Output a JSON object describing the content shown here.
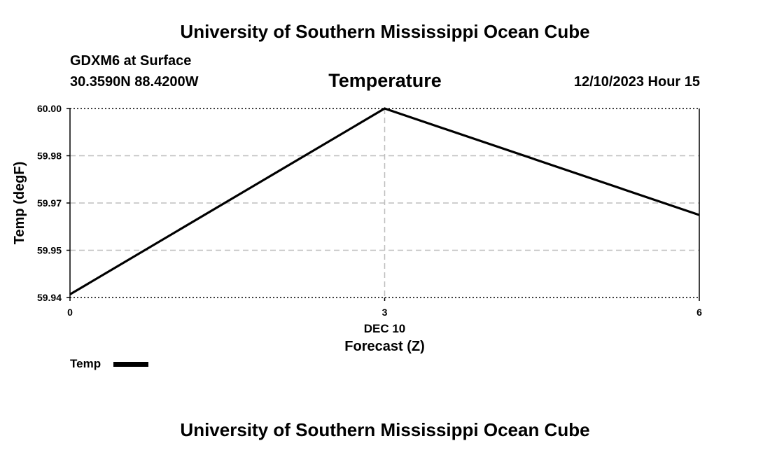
{
  "header": {
    "title": "University of Southern Mississippi Ocean Cube",
    "station": "GDXM6 at Surface",
    "coords": "30.3590N  88.4200W",
    "datetime": "12/10/2023 Hour 15"
  },
  "footer": {
    "title": "University of Southern Mississippi Ocean Cube"
  },
  "legend": {
    "label": "Temp"
  },
  "chart_data": {
    "type": "line",
    "title": "Temperature",
    "xlabel": "Forecast (Z)",
    "xlabel_date": "DEC 10",
    "ylabel": "Temp (degF)",
    "x": [
      0,
      3,
      6
    ],
    "x_ticks": [
      "0",
      "3",
      "6"
    ],
    "y_ticks": [
      "59.94",
      "59.95",
      "59.97",
      "59.98",
      "60.00"
    ],
    "y_tick_values": [
      59.94,
      59.955,
      59.97,
      59.985,
      60.0
    ],
    "xlim": [
      0,
      6
    ],
    "ylim": [
      59.94,
      60.0
    ],
    "grid": true,
    "legend_position": "bottom-left",
    "series": [
      {
        "name": "Temp",
        "color": "#000000",
        "values": [
          59.941,
          60.0,
          59.9662
        ]
      }
    ]
  }
}
